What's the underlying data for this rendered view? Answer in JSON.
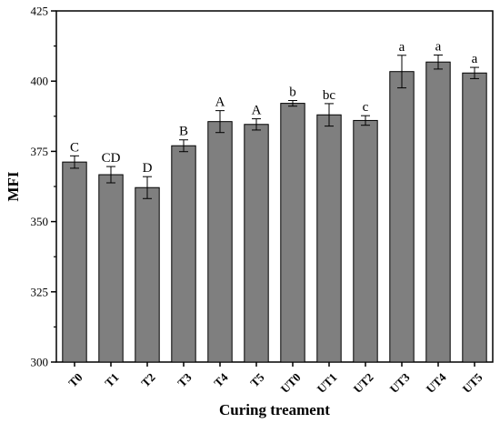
{
  "chart_data": {
    "type": "bar",
    "xlabel": "Curing treament",
    "ylabel": "MFI",
    "ylim": [
      300,
      425
    ],
    "yticks": [
      300,
      325,
      350,
      375,
      400,
      425
    ],
    "grid": false,
    "bar_color": "#7f7f7f",
    "categories": [
      "T0",
      "T1",
      "T2",
      "T3",
      "T4",
      "T5",
      "UT0",
      "UT1",
      "UT2",
      "UT3",
      "UT4",
      "UT5"
    ],
    "values": [
      371.2,
      366.7,
      362.1,
      377.0,
      385.6,
      384.6,
      392.1,
      388.0,
      386.0,
      403.4,
      406.8,
      402.9
    ],
    "errors": [
      2.2,
      2.9,
      3.9,
      2.1,
      3.9,
      2.0,
      1.0,
      4.0,
      1.7,
      5.8,
      2.5,
      2.0
    ],
    "significance_labels": [
      "C",
      "CD",
      "D",
      "B",
      "A",
      "A",
      "b",
      "bc",
      "c",
      "a",
      "a",
      "a"
    ]
  }
}
